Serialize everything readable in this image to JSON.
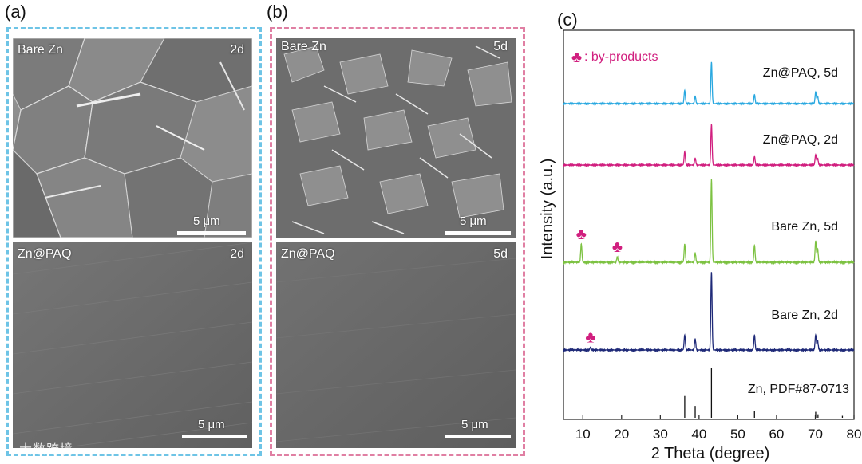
{
  "panels": {
    "a": {
      "letter": "(a)",
      "border_color": "#6ec4e6",
      "top": {
        "sample": "Bare Zn",
        "time": "2d",
        "scale": "5 μm"
      },
      "bottom": {
        "sample": "Zn@PAQ",
        "time": "2d",
        "scale": "5 μm"
      }
    },
    "b": {
      "letter": "(b)",
      "border_color": "#e07fa3",
      "top": {
        "sample": "Bare Zn",
        "time": "5d",
        "scale": "5 μm"
      },
      "bottom": {
        "sample": "Zn@PAQ",
        "time": "5d",
        "scale": "5 μm"
      }
    },
    "c": {
      "letter": "(c)"
    }
  },
  "watermark": "大数跨境",
  "chart_data": {
    "type": "line",
    "xlabel": "2 Theta (degree)",
    "ylabel": "Intensity (a.u.)",
    "xlim": [
      5,
      80
    ],
    "xticks": [
      10,
      20,
      30,
      40,
      50,
      60,
      70,
      80
    ],
    "legend_note": {
      "symbol": "♣",
      "text": ": by-products",
      "color": "#d11f7f"
    },
    "series": [
      {
        "name": "Zn@PAQ, 5d",
        "color": "#29a8e0",
        "peaks": [
          [
            36.3,
            0.32
          ],
          [
            39.0,
            0.18
          ],
          [
            43.2,
            1.0
          ],
          [
            54.3,
            0.22
          ],
          [
            70.1,
            0.28
          ],
          [
            70.6,
            0.18
          ]
        ],
        "byproducts": []
      },
      {
        "name": "Zn@PAQ, 2d",
        "color": "#d11f7f",
        "peaks": [
          [
            36.3,
            0.28
          ],
          [
            39.0,
            0.14
          ],
          [
            43.2,
            0.85
          ],
          [
            54.3,
            0.18
          ],
          [
            70.1,
            0.22
          ],
          [
            70.6,
            0.14
          ]
        ],
        "byproducts": []
      },
      {
        "name": "Bare Zn, 5d",
        "color": "#7dc242",
        "peaks": [
          [
            9.6,
            0.3
          ],
          [
            18.9,
            0.09
          ],
          [
            36.3,
            0.3
          ],
          [
            39.0,
            0.15
          ],
          [
            43.2,
            1.35
          ],
          [
            54.3,
            0.28
          ],
          [
            70.1,
            0.35
          ],
          [
            70.6,
            0.22
          ]
        ],
        "byproducts": [
          9.6,
          18.9
        ]
      },
      {
        "name": "Bare Zn, 2d",
        "color": "#1f2a78",
        "peaks": [
          [
            12.0,
            0.05
          ],
          [
            36.3,
            0.25
          ],
          [
            39.0,
            0.18
          ],
          [
            43.2,
            1.3
          ],
          [
            54.3,
            0.25
          ],
          [
            70.1,
            0.25
          ],
          [
            70.6,
            0.15
          ]
        ],
        "byproducts": [
          12.0
        ]
      }
    ],
    "reference": {
      "name": "Zn, PDF#87-0713",
      "lines": [
        [
          36.3,
          0.44
        ],
        [
          39.0,
          0.24
        ],
        [
          43.2,
          1.0
        ],
        [
          54.3,
          0.14
        ],
        [
          70.1,
          0.12
        ],
        [
          70.7,
          0.07
        ],
        [
          77.0,
          0.04
        ]
      ]
    }
  }
}
